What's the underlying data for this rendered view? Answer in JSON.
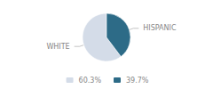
{
  "chart_data": {
    "type": "pie",
    "categories": [
      "WHITE",
      "HISPANIC"
    ],
    "values": [
      60.3,
      39.7
    ],
    "value_labels": [
      "60.3%",
      "39.7%"
    ],
    "colors": [
      "#d4dce8",
      "#2d6b87"
    ],
    "legend": "bottom"
  }
}
